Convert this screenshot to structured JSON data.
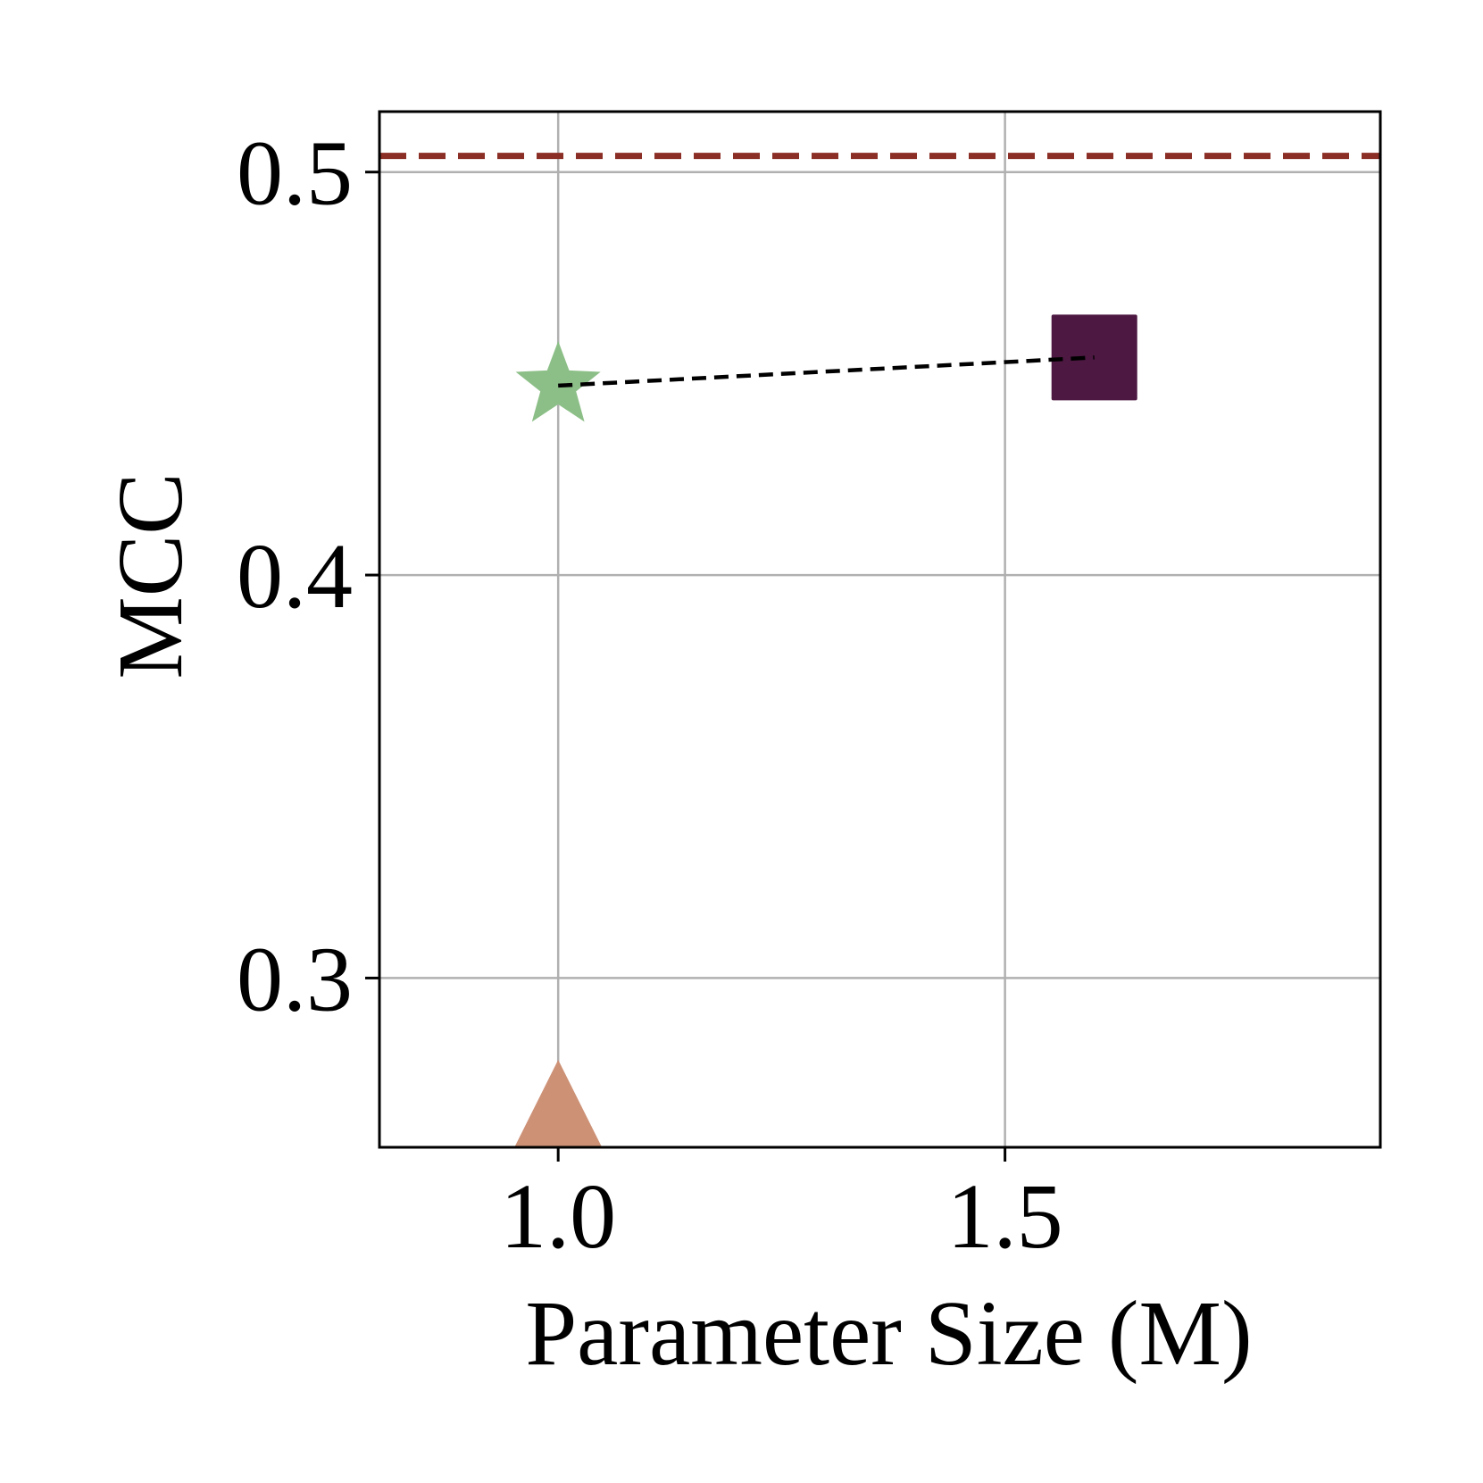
{
  "chart_data": {
    "type": "scatter",
    "xlabel": "Parameter Size (M)",
    "ylabel": "MCC",
    "xlim": [
      0.8,
      1.92
    ],
    "ylim": [
      0.258,
      0.515
    ],
    "x_ticks": [
      1.0,
      1.5
    ],
    "x_tick_labels": [
      "1.0",
      "1.5"
    ],
    "y_ticks": [
      0.3,
      0.4,
      0.5
    ],
    "y_tick_labels": [
      "0.3",
      "0.4",
      "0.5"
    ],
    "grid": true,
    "points": [
      {
        "x": 1.0,
        "y": 0.447,
        "marker": "star",
        "color": "#8cbf87"
      },
      {
        "x": 1.6,
        "y": 0.454,
        "marker": "square",
        "color": "#4d1842"
      },
      {
        "x": 1.0,
        "y": 0.258,
        "marker": "triangle",
        "color": "#cd9176"
      }
    ],
    "trend_line": {
      "x": [
        1.0,
        1.6
      ],
      "y": [
        0.447,
        0.454
      ],
      "color": "#000000",
      "style": "dashed"
    },
    "reference_line": {
      "y": 0.504,
      "color": "#8b2e25",
      "style": "dashed"
    }
  }
}
